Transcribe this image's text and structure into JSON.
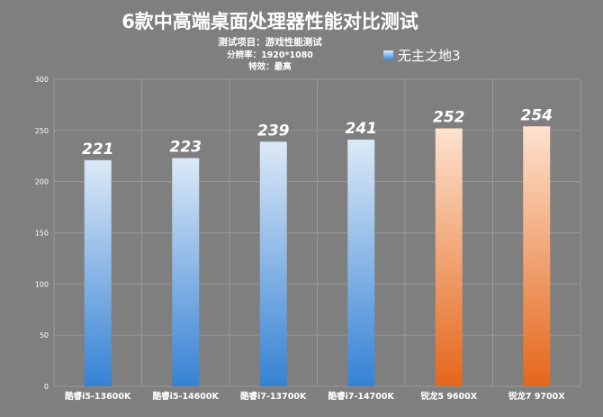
{
  "chart_data": {
    "type": "bar",
    "title": "6款中高端桌面处理器性能对比测试",
    "subtitle_lines": [
      "测试项目：游戏性能测试",
      "分辨率：1920*1080",
      "特效：最高"
    ],
    "legend": {
      "label": "无主之地3",
      "color": "#3f87d6",
      "placement": "top-right"
    },
    "categories": [
      "酷睿i5-13600K",
      "酷睿i5-14600K",
      "酷睿i7-13700K",
      "酷睿i7-14700K",
      "锐龙5 9600X",
      "锐龙7 9700X"
    ],
    "series": [
      {
        "name": "无主之地3",
        "values": [
          221,
          223,
          239,
          241,
          252,
          254
        ]
      }
    ],
    "bar_colors": [
      "blue",
      "blue",
      "blue",
      "blue",
      "orange",
      "orange"
    ],
    "colors": {
      "blue_top": "#dce9f7",
      "blue_bottom": "#3582d4",
      "orange_top": "#fde2cf",
      "orange_bottom": "#e4661a",
      "background": "#7f7f7f",
      "grid": "#999999"
    },
    "ylim": [
      0,
      300
    ],
    "yticks": [
      0,
      50,
      100,
      150,
      200,
      250,
      300
    ],
    "grid": true,
    "xlabel": "",
    "ylabel": ""
  }
}
